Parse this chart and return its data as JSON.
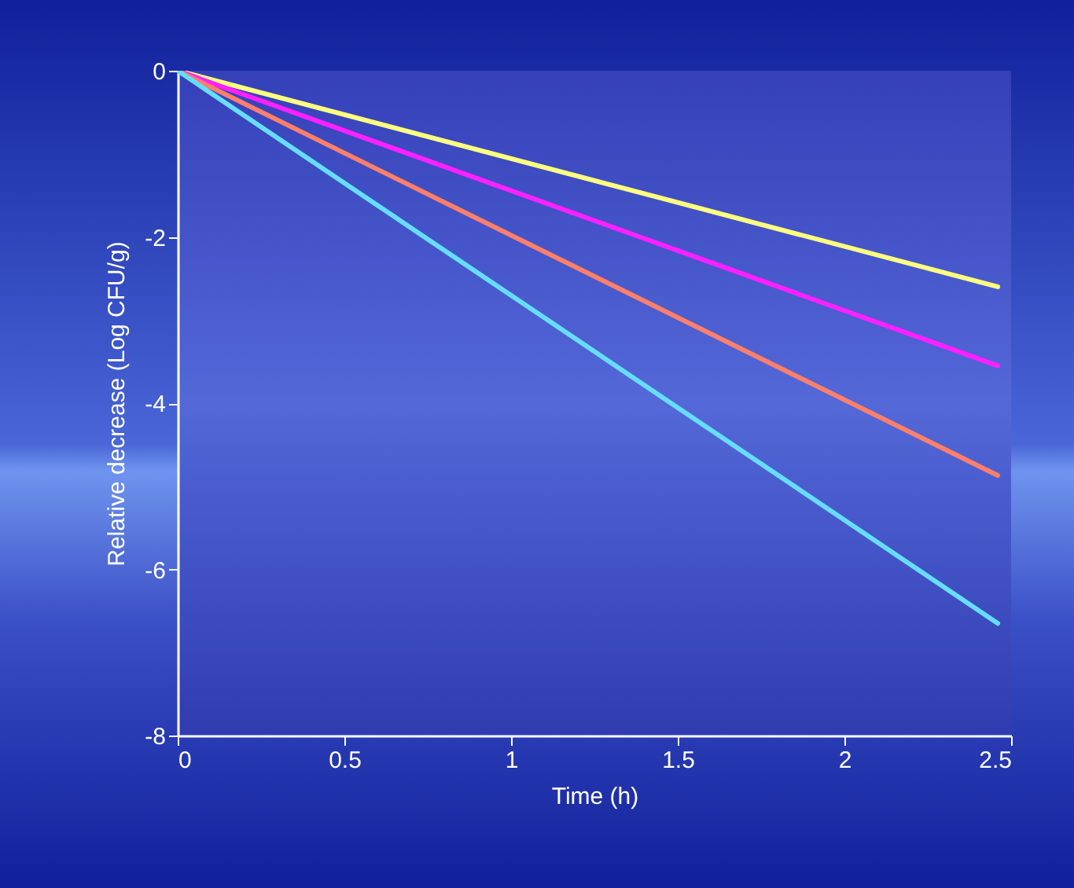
{
  "chart_data": {
    "type": "line",
    "xlabel": "Time (h)",
    "ylabel": "Relative decrease (Log CFU/g)",
    "x": [
      0,
      2.46
    ],
    "series": [
      {
        "color": "#ffff80",
        "values": [
          0,
          -2.6
        ]
      },
      {
        "color": "#ff20ff",
        "values": [
          0,
          -3.55
        ]
      },
      {
        "color": "#ff7f6a",
        "values": [
          0,
          -4.87
        ]
      },
      {
        "color": "#66ddff",
        "values": [
          0,
          -6.65
        ]
      }
    ],
    "xlim": [
      0,
      2.5
    ],
    "xticks": [
      0,
      0.5,
      1,
      1.5,
      2,
      2.5
    ],
    "ylim": [
      -8,
      0
    ],
    "yticks": [
      -8,
      -6,
      -4,
      -2,
      0
    ],
    "grid": false,
    "marker": "none",
    "line_style": "solid"
  }
}
